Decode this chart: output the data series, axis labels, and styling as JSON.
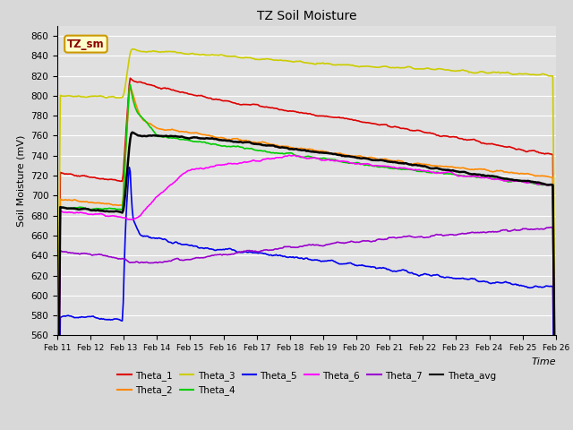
{
  "title": "TZ Soil Moisture",
  "ylabel": "Soil Moisture (mV)",
  "xlabel": "Time",
  "ylim": [
    560,
    870
  ],
  "xtick_labels": [
    "Feb 11",
    "Feb 12",
    "Feb 13",
    "Feb 14",
    "Feb 15",
    "Feb 16",
    "Feb 17",
    "Feb 18",
    "Feb 19",
    "Feb 20",
    "Feb 21",
    "Feb 22",
    "Feb 23",
    "Feb 24",
    "Feb 25",
    "Feb 26"
  ],
  "label_box_text": "TZ_sm",
  "label_box_bg": "#ffffcc",
  "label_box_edge": "#cc9900",
  "label_box_text_color": "#8b0000",
  "background_color": "#e0e0e0",
  "grid_color": "#ffffff",
  "series": {
    "Theta_1": {
      "color": "#dd0000",
      "lw": 1.2
    },
    "Theta_2": {
      "color": "#ff8800",
      "lw": 1.2
    },
    "Theta_3": {
      "color": "#cccc00",
      "lw": 1.2
    },
    "Theta_4": {
      "color": "#00cc00",
      "lw": 1.2
    },
    "Theta_5": {
      "color": "#0000ee",
      "lw": 1.2
    },
    "Theta_6": {
      "color": "#ff00ff",
      "lw": 1.2
    },
    "Theta_7": {
      "color": "#9900cc",
      "lw": 1.2
    },
    "Theta_avg": {
      "color": "#000000",
      "lw": 1.8
    }
  }
}
